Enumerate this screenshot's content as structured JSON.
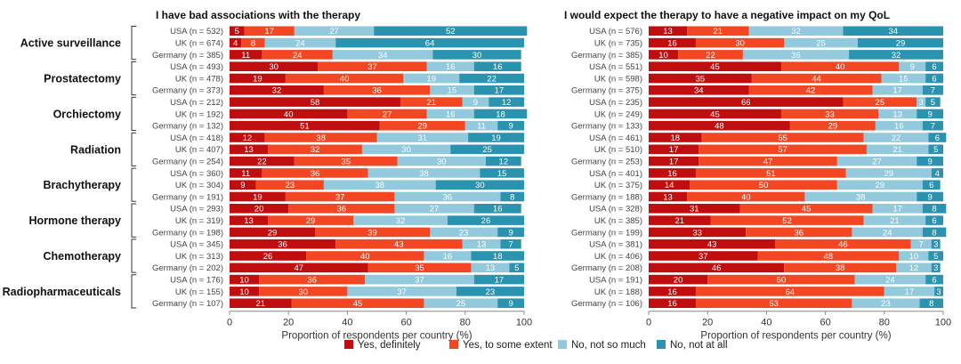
{
  "chart_data": {
    "type": "bar",
    "orientation": "horizontal",
    "stacked": true,
    "normalized": true,
    "xlim": [
      0,
      100
    ],
    "xticks": [
      0,
      20,
      40,
      60,
      80,
      100
    ],
    "xlabel": "Proportion of respondents per country (%)",
    "grid": false,
    "legend": {
      "placement": "bottom-center",
      "entries": [
        {
          "label": "Yes, definitely",
          "color": "#c00d0d"
        },
        {
          "label": "Yes, to some extent",
          "color": "#f24722"
        },
        {
          "label": "No, not so much",
          "color": "#93c9dd"
        },
        {
          "label": "No, not at all",
          "color": "#2a93b0"
        }
      ]
    },
    "groups": [
      "Active surveillance",
      "Prostatectomy",
      "Orchiectomy",
      "Radiation",
      "Brachytherapy",
      "Hormone therapy",
      "Chemotherapy",
      "Radiopharmaceuticals"
    ],
    "countries": [
      "USA",
      "UK",
      "Germany"
    ],
    "panels": [
      {
        "title": "I have bad associations with the therapy",
        "rows": [
          {
            "group": "Active surveillance",
            "country": "USA",
            "n": 532,
            "label": "USA (n = 532)",
            "values": [
              5,
              17,
              27,
              52
            ]
          },
          {
            "group": "Active surveillance",
            "country": "UK",
            "n": 674,
            "label": "UK (n = 674)",
            "values": [
              4,
              8,
              24,
              64
            ]
          },
          {
            "group": "Active surveillance",
            "country": "Germany",
            "n": 385,
            "label": "Germany (n = 385)",
            "values": [
              11,
              24,
              34,
              30
            ]
          },
          {
            "group": "Prostatectomy",
            "country": "USA",
            "n": 493,
            "label": "USA (n = 493)",
            "values": [
              30,
              37,
              16,
              16
            ]
          },
          {
            "group": "Prostatectomy",
            "country": "UK",
            "n": 478,
            "label": "UK (n = 478)",
            "values": [
              19,
              40,
              19,
              22
            ]
          },
          {
            "group": "Prostatectomy",
            "country": "Germany",
            "n": 373,
            "label": "Germany (n = 373)",
            "values": [
              32,
              36,
              15,
              17
            ]
          },
          {
            "group": "Orchiectomy",
            "country": "USA",
            "n": 212,
            "label": "USA (n = 212)",
            "values": [
              58,
              21,
              9,
              12
            ]
          },
          {
            "group": "Orchiectomy",
            "country": "UK",
            "n": 192,
            "label": "UK (n = 192)",
            "values": [
              40,
              27,
              16,
              18
            ]
          },
          {
            "group": "Orchiectomy",
            "country": "Germany",
            "n": 132,
            "label": "Germany (n = 132)",
            "values": [
              51,
              29,
              11,
              9
            ]
          },
          {
            "group": "Radiation",
            "country": "USA",
            "n": 418,
            "label": "USA (n = 418)",
            "values": [
              12,
              38,
              31,
              19
            ]
          },
          {
            "group": "Radiation",
            "country": "UK",
            "n": 407,
            "label": "UK (n = 407)",
            "values": [
              13,
              32,
              30,
              25
            ]
          },
          {
            "group": "Radiation",
            "country": "Germany",
            "n": 254,
            "label": "Germany (n = 254)",
            "values": [
              22,
              35,
              30,
              12
            ]
          },
          {
            "group": "Brachytherapy",
            "country": "USA",
            "n": 360,
            "label": "USA (n = 360)",
            "values": [
              11,
              36,
              38,
              15
            ]
          },
          {
            "group": "Brachytherapy",
            "country": "UK",
            "n": 304,
            "label": "UK (n = 304)",
            "values": [
              9,
              23,
              38,
              30
            ]
          },
          {
            "group": "Brachytherapy",
            "country": "Germany",
            "n": 191,
            "label": "Germany (n = 191)",
            "values": [
              19,
              37,
              36,
              8
            ]
          },
          {
            "group": "Hormone therapy",
            "country": "USA",
            "n": 293,
            "label": "USA (n = 293)",
            "values": [
              20,
              36,
              27,
              16
            ]
          },
          {
            "group": "Hormone therapy",
            "country": "UK",
            "n": 319,
            "label": "UK (n = 319)",
            "values": [
              13,
              29,
              32,
              26
            ]
          },
          {
            "group": "Hormone therapy",
            "country": "Germany",
            "n": 198,
            "label": "Germany (n = 198)",
            "values": [
              29,
              39,
              23,
              9
            ]
          },
          {
            "group": "Chemotherapy",
            "country": "USA",
            "n": 345,
            "label": "USA (n = 345)",
            "values": [
              36,
              43,
              13,
              7
            ]
          },
          {
            "group": "Chemotherapy",
            "country": "UK",
            "n": 313,
            "label": "UK (n = 313)",
            "values": [
              26,
              40,
              16,
              18
            ]
          },
          {
            "group": "Chemotherapy",
            "country": "Germany",
            "n": 202,
            "label": "Germany (n = 202)",
            "values": [
              47,
              35,
              13,
              5
            ]
          },
          {
            "group": "Radiopharmaceuticals",
            "country": "USA",
            "n": 176,
            "label": "USA (n = 176)",
            "values": [
              10,
              36,
              37,
              17
            ]
          },
          {
            "group": "Radiopharmaceuticals",
            "country": "UK",
            "n": 155,
            "label": "UK (n = 155)",
            "values": [
              10,
              30,
              37,
              23
            ]
          },
          {
            "group": "Radiopharmaceuticals",
            "country": "Germany",
            "n": 107,
            "label": "Germany (n = 107)",
            "values": [
              21,
              45,
              25,
              9
            ]
          }
        ]
      },
      {
        "title": "I would expect the therapy to have a negative impact on my QoL",
        "rows": [
          {
            "group": "Active surveillance",
            "country": "USA",
            "n": 576,
            "label": "USA (n = 576)",
            "values": [
              13,
              21,
              32,
              34
            ]
          },
          {
            "group": "Active surveillance",
            "country": "UK",
            "n": 735,
            "label": "UK (n = 735)",
            "values": [
              16,
              30,
              25,
              29
            ]
          },
          {
            "group": "Active surveillance",
            "country": "Germany",
            "n": 385,
            "label": "Germany (n = 385)",
            "values": [
              10,
              22,
              36,
              32
            ]
          },
          {
            "group": "Prostatectomy",
            "country": "USA",
            "n": 551,
            "label": "USA (n = 551)",
            "values": [
              45,
              40,
              9,
              6
            ]
          },
          {
            "group": "Prostatectomy",
            "country": "UK",
            "n": 598,
            "label": "UK (n = 598)",
            "values": [
              35,
              44,
              15,
              6
            ]
          },
          {
            "group": "Prostatectomy",
            "country": "Germany",
            "n": 375,
            "label": "Germany (n = 375)",
            "values": [
              34,
              42,
              17,
              7
            ]
          },
          {
            "group": "Orchiectomy",
            "country": "USA",
            "n": 235,
            "label": "USA (n = 235)",
            "values": [
              66,
              25,
              3,
              5
            ]
          },
          {
            "group": "Orchiectomy",
            "country": "UK",
            "n": 249,
            "label": "UK (n = 249)",
            "values": [
              45,
              33,
              13,
              9
            ]
          },
          {
            "group": "Orchiectomy",
            "country": "Germany",
            "n": 133,
            "label": "Germany (n = 133)",
            "values": [
              48,
              29,
              16,
              7
            ]
          },
          {
            "group": "Radiation",
            "country": "USA",
            "n": 461,
            "label": "USA (n = 461)",
            "values": [
              18,
              55,
              22,
              6
            ]
          },
          {
            "group": "Radiation",
            "country": "UK",
            "n": 510,
            "label": "UK (n = 510)",
            "values": [
              17,
              57,
              21,
              5
            ]
          },
          {
            "group": "Radiation",
            "country": "Germany",
            "n": 253,
            "label": "Germany (n = 253)",
            "values": [
              17,
              47,
              27,
              9
            ]
          },
          {
            "group": "Brachytherapy",
            "country": "USA",
            "n": 401,
            "label": "USA (n = 401)",
            "values": [
              16,
              51,
              29,
              4
            ]
          },
          {
            "group": "Brachytherapy",
            "country": "UK",
            "n": 375,
            "label": "UK (n = 375)",
            "values": [
              14,
              50,
              29,
              6
            ]
          },
          {
            "group": "Brachytherapy",
            "country": "Germany",
            "n": 188,
            "label": "Germany (n = 188)",
            "values": [
              13,
              40,
              38,
              9
            ]
          },
          {
            "group": "Hormone therapy",
            "country": "USA",
            "n": 328,
            "label": "USA (n = 328)",
            "values": [
              31,
              45,
              17,
              8
            ]
          },
          {
            "group": "Hormone therapy",
            "country": "UK",
            "n": 385,
            "label": "UK (n = 385)",
            "values": [
              21,
              52,
              21,
              6
            ]
          },
          {
            "group": "Hormone therapy",
            "country": "Germany",
            "n": 199,
            "label": "Germany (n = 199)",
            "values": [
              33,
              36,
              24,
              8
            ]
          },
          {
            "group": "Chemotherapy",
            "country": "USA",
            "n": 381,
            "label": "USA (n = 381)",
            "values": [
              43,
              46,
              7,
              3
            ]
          },
          {
            "group": "Chemotherapy",
            "country": "UK",
            "n": 406,
            "label": "UK (n = 406)",
            "values": [
              37,
              48,
              10,
              5
            ]
          },
          {
            "group": "Chemotherapy",
            "country": "Germany",
            "n": 208,
            "label": "Germany (n = 208)",
            "values": [
              46,
              38,
              12,
              3
            ]
          },
          {
            "group": "Radiopharmaceuticals",
            "country": "USA",
            "n": 191,
            "label": "USA (n = 191)",
            "values": [
              20,
              50,
              24,
              6
            ]
          },
          {
            "group": "Radiopharmaceuticals",
            "country": "UK",
            "n": 188,
            "label": "UK (n = 188)",
            "values": [
              16,
              64,
              17,
              3
            ]
          },
          {
            "group": "Radiopharmaceuticals",
            "country": "Germany",
            "n": 106,
            "label": "Germany (n = 106)",
            "values": [
              16,
              53,
              23,
              8
            ]
          }
        ]
      }
    ]
  }
}
